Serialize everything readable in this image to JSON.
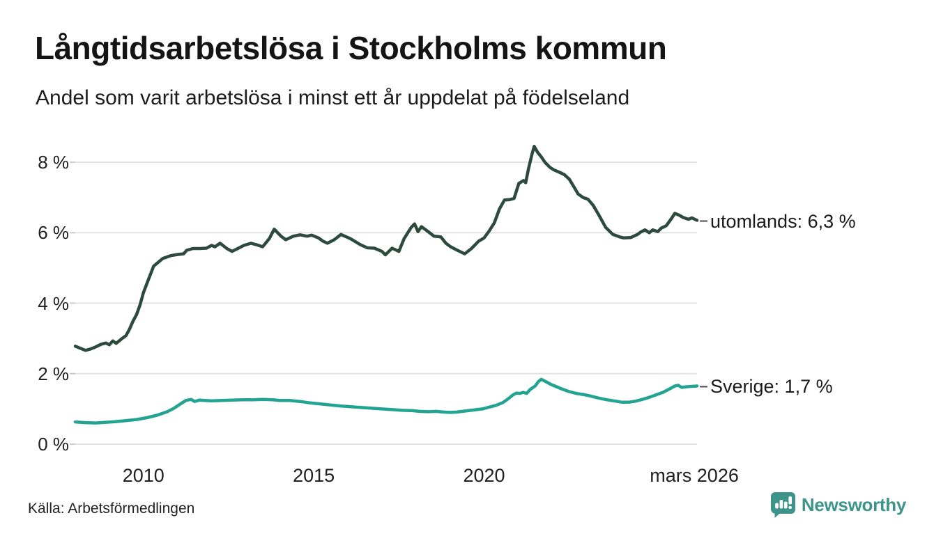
{
  "header": {
    "title": "Långtidsarbetslösa i Stockholms kommun",
    "subtitle": "Andel som varit arbetslösa i minst ett år uppdelat på födelseland"
  },
  "footer": {
    "source": "Källa: Arbetsförmedlingen",
    "brand": "Newsworthy"
  },
  "colors": {
    "utomlands_line": "#2d4a3e",
    "sverige_line": "#23a493",
    "gridline": "#e4e4e4",
    "tick_mark": "#cccccc",
    "label_dash": "#4a4a4a",
    "brand_teal": "#3e948b",
    "text": "#1b1b1b"
  },
  "chart_data": {
    "type": "line",
    "title": "Långtidsarbetslösa i Stockholms kommun",
    "subtitle": "Andel som varit arbetslösa i minst ett år uppdelat på födelseland",
    "x_unit": "year",
    "y_unit": "percent",
    "x_range": [
      2008.0,
      2026.25
    ],
    "y_range": [
      0,
      8.6
    ],
    "grid": "horizontal",
    "legend_position": "line-end-labels",
    "y_ticks": [
      [
        0,
        "0 %"
      ],
      [
        2,
        "2 %"
      ],
      [
        4,
        "4 %"
      ],
      [
        6,
        "6 %"
      ],
      [
        8,
        "8 %"
      ]
    ],
    "x_ticks": [
      [
        2010,
        "2010"
      ],
      [
        2015,
        "2015"
      ],
      [
        2020,
        "2020"
      ],
      [
        2026.17,
        "mars 2026"
      ]
    ],
    "series": [
      {
        "id": "utomlands",
        "name": "utomlands",
        "end_label": "utomlands: 6,3 %",
        "end_value": 6.3,
        "color": "#2d4a3e",
        "points": [
          [
            2008.0,
            2.78
          ],
          [
            2008.15,
            2.72
          ],
          [
            2008.3,
            2.66
          ],
          [
            2008.45,
            2.7
          ],
          [
            2008.6,
            2.76
          ],
          [
            2008.75,
            2.83
          ],
          [
            2008.9,
            2.87
          ],
          [
            2009.0,
            2.82
          ],
          [
            2009.1,
            2.93
          ],
          [
            2009.2,
            2.86
          ],
          [
            2009.35,
            2.98
          ],
          [
            2009.49,
            3.08
          ],
          [
            2009.59,
            3.26
          ],
          [
            2009.69,
            3.48
          ],
          [
            2009.8,
            3.68
          ],
          [
            2009.9,
            3.95
          ],
          [
            2010.0,
            4.3
          ],
          [
            2010.1,
            4.55
          ],
          [
            2010.3,
            5.05
          ],
          [
            2010.57,
            5.27
          ],
          [
            2010.8,
            5.35
          ],
          [
            2011.0,
            5.38
          ],
          [
            2011.18,
            5.4
          ],
          [
            2011.27,
            5.5
          ],
          [
            2011.45,
            5.55
          ],
          [
            2011.65,
            5.55
          ],
          [
            2011.85,
            5.56
          ],
          [
            2012.0,
            5.64
          ],
          [
            2012.1,
            5.6
          ],
          [
            2012.25,
            5.7
          ],
          [
            2012.45,
            5.55
          ],
          [
            2012.6,
            5.47
          ],
          [
            2012.75,
            5.54
          ],
          [
            2012.95,
            5.64
          ],
          [
            2013.16,
            5.7
          ],
          [
            2013.35,
            5.65
          ],
          [
            2013.5,
            5.6
          ],
          [
            2013.7,
            5.84
          ],
          [
            2013.84,
            6.1
          ],
          [
            2014.04,
            5.9
          ],
          [
            2014.18,
            5.8
          ],
          [
            2014.4,
            5.9
          ],
          [
            2014.6,
            5.94
          ],
          [
            2014.8,
            5.9
          ],
          [
            2014.94,
            5.93
          ],
          [
            2015.14,
            5.85
          ],
          [
            2015.27,
            5.76
          ],
          [
            2015.4,
            5.7
          ],
          [
            2015.6,
            5.8
          ],
          [
            2015.8,
            5.95
          ],
          [
            2016.08,
            5.83
          ],
          [
            2016.37,
            5.66
          ],
          [
            2016.57,
            5.57
          ],
          [
            2016.78,
            5.56
          ],
          [
            2017.0,
            5.47
          ],
          [
            2017.1,
            5.37
          ],
          [
            2017.3,
            5.56
          ],
          [
            2017.5,
            5.47
          ],
          [
            2017.65,
            5.83
          ],
          [
            2017.86,
            6.15
          ],
          [
            2017.96,
            6.25
          ],
          [
            2018.06,
            6.03
          ],
          [
            2018.16,
            6.17
          ],
          [
            2018.33,
            6.05
          ],
          [
            2018.53,
            5.9
          ],
          [
            2018.73,
            5.88
          ],
          [
            2018.88,
            5.7
          ],
          [
            2019.02,
            5.6
          ],
          [
            2019.22,
            5.5
          ],
          [
            2019.43,
            5.4
          ],
          [
            2019.63,
            5.55
          ],
          [
            2019.84,
            5.76
          ],
          [
            2020.0,
            5.85
          ],
          [
            2020.15,
            6.05
          ],
          [
            2020.3,
            6.28
          ],
          [
            2020.45,
            6.67
          ],
          [
            2020.6,
            6.93
          ],
          [
            2020.75,
            6.94
          ],
          [
            2020.88,
            6.97
          ],
          [
            2021.02,
            7.4
          ],
          [
            2021.16,
            7.48
          ],
          [
            2021.22,
            7.42
          ],
          [
            2021.3,
            7.8
          ],
          [
            2021.4,
            8.2
          ],
          [
            2021.47,
            8.45
          ],
          [
            2021.57,
            8.28
          ],
          [
            2021.68,
            8.15
          ],
          [
            2021.8,
            7.98
          ],
          [
            2021.94,
            7.85
          ],
          [
            2022.05,
            7.78
          ],
          [
            2022.2,
            7.72
          ],
          [
            2022.35,
            7.65
          ],
          [
            2022.5,
            7.52
          ],
          [
            2022.65,
            7.28
          ],
          [
            2022.76,
            7.1
          ],
          [
            2022.9,
            7.0
          ],
          [
            2023.05,
            6.95
          ],
          [
            2023.2,
            6.78
          ],
          [
            2023.37,
            6.5
          ],
          [
            2023.57,
            6.15
          ],
          [
            2023.78,
            5.95
          ],
          [
            2023.98,
            5.88
          ],
          [
            2024.1,
            5.85
          ],
          [
            2024.3,
            5.86
          ],
          [
            2024.5,
            5.95
          ],
          [
            2024.6,
            6.02
          ],
          [
            2024.72,
            6.08
          ],
          [
            2024.85,
            6.0
          ],
          [
            2024.95,
            6.08
          ],
          [
            2025.1,
            6.03
          ],
          [
            2025.2,
            6.13
          ],
          [
            2025.35,
            6.2
          ],
          [
            2025.5,
            6.4
          ],
          [
            2025.6,
            6.55
          ],
          [
            2025.72,
            6.5
          ],
          [
            2025.85,
            6.43
          ],
          [
            2026.0,
            6.38
          ],
          [
            2026.1,
            6.42
          ],
          [
            2026.25,
            6.35
          ]
        ]
      },
      {
        "id": "sverige",
        "name": "Sverige",
        "end_label": "Sverige: 1,7 %",
        "end_value": 1.7,
        "color": "#23a493",
        "points": [
          [
            2008.0,
            0.63
          ],
          [
            2008.3,
            0.61
          ],
          [
            2008.6,
            0.6
          ],
          [
            2008.9,
            0.62
          ],
          [
            2009.2,
            0.64
          ],
          [
            2009.5,
            0.67
          ],
          [
            2009.8,
            0.7
          ],
          [
            2010.1,
            0.75
          ],
          [
            2010.4,
            0.82
          ],
          [
            2010.7,
            0.92
          ],
          [
            2010.9,
            1.02
          ],
          [
            2011.1,
            1.15
          ],
          [
            2011.25,
            1.24
          ],
          [
            2011.4,
            1.27
          ],
          [
            2011.5,
            1.21
          ],
          [
            2011.65,
            1.25
          ],
          [
            2011.8,
            1.24
          ],
          [
            2012.0,
            1.23
          ],
          [
            2012.3,
            1.24
          ],
          [
            2012.6,
            1.25
          ],
          [
            2012.9,
            1.26
          ],
          [
            2013.2,
            1.26
          ],
          [
            2013.5,
            1.27
          ],
          [
            2013.8,
            1.26
          ],
          [
            2014.0,
            1.24
          ],
          [
            2014.3,
            1.24
          ],
          [
            2014.6,
            1.21
          ],
          [
            2014.9,
            1.17
          ],
          [
            2015.2,
            1.14
          ],
          [
            2015.5,
            1.11
          ],
          [
            2015.8,
            1.08
          ],
          [
            2016.1,
            1.06
          ],
          [
            2016.4,
            1.04
          ],
          [
            2016.7,
            1.02
          ],
          [
            2017.0,
            1.0
          ],
          [
            2017.3,
            0.98
          ],
          [
            2017.6,
            0.96
          ],
          [
            2017.9,
            0.95
          ],
          [
            2018.1,
            0.93
          ],
          [
            2018.35,
            0.92
          ],
          [
            2018.6,
            0.93
          ],
          [
            2018.8,
            0.91
          ],
          [
            2019.0,
            0.9
          ],
          [
            2019.2,
            0.91
          ],
          [
            2019.45,
            0.94
          ],
          [
            2019.7,
            0.97
          ],
          [
            2019.95,
            1.0
          ],
          [
            2020.15,
            1.05
          ],
          [
            2020.35,
            1.1
          ],
          [
            2020.55,
            1.18
          ],
          [
            2020.7,
            1.28
          ],
          [
            2020.85,
            1.4
          ],
          [
            2020.95,
            1.45
          ],
          [
            2021.05,
            1.44
          ],
          [
            2021.15,
            1.47
          ],
          [
            2021.25,
            1.44
          ],
          [
            2021.35,
            1.55
          ],
          [
            2021.5,
            1.65
          ],
          [
            2021.6,
            1.78
          ],
          [
            2021.68,
            1.84
          ],
          [
            2021.8,
            1.78
          ],
          [
            2021.95,
            1.7
          ],
          [
            2022.1,
            1.64
          ],
          [
            2022.3,
            1.56
          ],
          [
            2022.5,
            1.49
          ],
          [
            2022.7,
            1.44
          ],
          [
            2022.9,
            1.41
          ],
          [
            2023.1,
            1.37
          ],
          [
            2023.35,
            1.31
          ],
          [
            2023.6,
            1.26
          ],
          [
            2023.85,
            1.22
          ],
          [
            2024.05,
            1.19
          ],
          [
            2024.25,
            1.19
          ],
          [
            2024.45,
            1.22
          ],
          [
            2024.65,
            1.27
          ],
          [
            2024.85,
            1.33
          ],
          [
            2025.05,
            1.4
          ],
          [
            2025.25,
            1.47
          ],
          [
            2025.45,
            1.57
          ],
          [
            2025.6,
            1.65
          ],
          [
            2025.7,
            1.67
          ],
          [
            2025.8,
            1.61
          ],
          [
            2025.95,
            1.63
          ],
          [
            2026.1,
            1.64
          ],
          [
            2026.25,
            1.65
          ]
        ]
      }
    ]
  }
}
